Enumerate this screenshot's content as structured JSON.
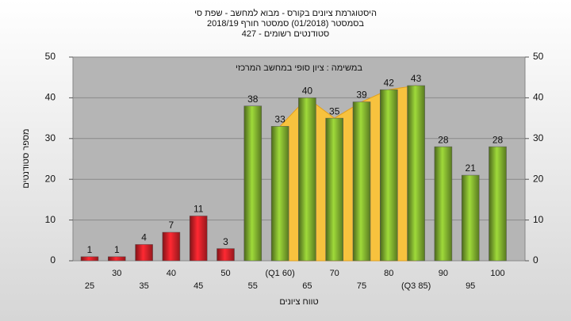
{
  "chart_data": {
    "type": "bar",
    "title": [
      "היסטוגרמת ציונים בקורס - מבוא למחשב - שפת סי",
      "בסמסטר (01/2018) סמסטר חורף 2018/19",
      "סטודנטים רשומים - 427"
    ],
    "annotation": "במשימה : ציון סופי במחשב המרכזי",
    "y_label": "מספר סטודנטים",
    "x_label": "טווח ציונים",
    "categories": [
      "25",
      "30",
      "35",
      "40",
      "45",
      "50",
      "55",
      "(Q1 60)",
      "65",
      "70",
      "75",
      "80",
      "(Q3 85)",
      "90",
      "95",
      "100"
    ],
    "values": [
      1,
      1,
      4,
      7,
      11,
      3,
      38,
      33,
      40,
      35,
      39,
      42,
      43,
      28,
      21,
      28
    ],
    "bar_colors": [
      "#d42128",
      "#d42128",
      "#d42128",
      "#d42128",
      "#d42128",
      "#d42128",
      "#7fae2e",
      "#7fae2e",
      "#7fae2e",
      "#7fae2e",
      "#7fae2e",
      "#7fae2e",
      "#7fae2e",
      "#7fae2e",
      "#7fae2e",
      "#7fae2e"
    ],
    "ylim": [
      0,
      50
    ],
    "yticks": [
      0,
      10,
      20,
      30,
      40,
      50
    ],
    "grid": true
  }
}
